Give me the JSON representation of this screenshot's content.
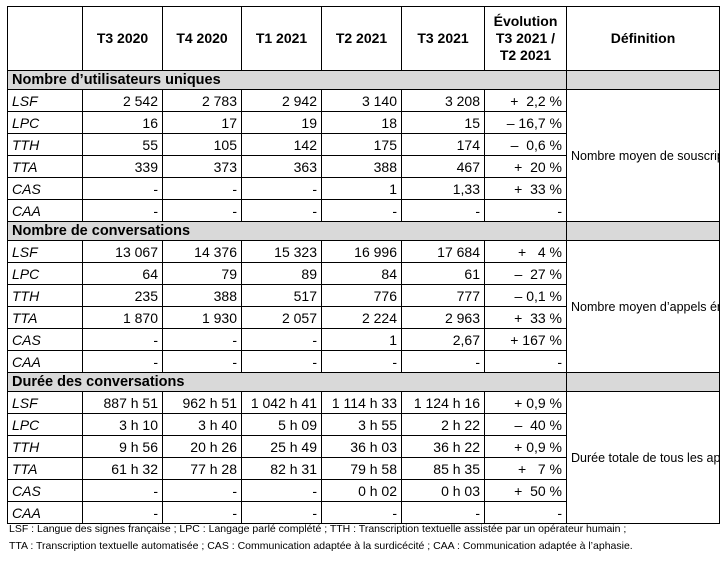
{
  "header": {
    "columns": [
      "T3 2020",
      "T4 2020",
      "T1 2021",
      "T2 2021",
      "T3 2021"
    ],
    "evolution_label": [
      "Évolution",
      "T3 2021 /",
      "T2 2021"
    ],
    "definition_label": "Définition"
  },
  "sections": [
    {
      "title": "Nombre d’utilisateurs uniques",
      "definition": "Nombre moyen de souscripteurs ayant utilisé le service au cours d’un mois, c’est-à-dire ceux ayant émis ou reçu un appel.",
      "rows": [
        {
          "label": "LSF",
          "values": [
            "2 542",
            "2 783",
            "2 942",
            "3 140",
            "3 208"
          ],
          "evolution": "+  2,2 %"
        },
        {
          "label": "LPC",
          "values": [
            "16",
            "17",
            "19",
            "18",
            "15"
          ],
          "evolution": "– 16,7 %"
        },
        {
          "label": "TTH",
          "values": [
            "55",
            "105",
            "142",
            "175",
            "174"
          ],
          "evolution": "–  0,6 %"
        },
        {
          "label": "TTA",
          "values": [
            "339",
            "373",
            "363",
            "388",
            "467"
          ],
          "evolution": "+  20 %"
        },
        {
          "label": "CAS",
          "values": [
            "-",
            "-",
            "-",
            "1",
            "1,33"
          ],
          "evolution": "+  33 %"
        },
        {
          "label": "CAA",
          "values": [
            "-",
            "-",
            "-",
            "-",
            "-"
          ],
          "evolution": "-"
        }
      ]
    },
    {
      "title": "Nombre de conversations",
      "definition": "Nombre moyen d’appels émis ou reçus par l’ensemble des utilisateurs au cours d’un mois.",
      "rows": [
        {
          "label": "LSF",
          "values": [
            "13 067",
            "14 376",
            "15 323",
            "16 996",
            "17 684"
          ],
          "evolution": "+   4 %"
        },
        {
          "label": "LPC",
          "values": [
            "64",
            "79",
            "89",
            "84",
            "61"
          ],
          "evolution": "–  27 %"
        },
        {
          "label": "TTH",
          "values": [
            "235",
            "388",
            "517",
            "776",
            "777"
          ],
          "evolution": "– 0,1 %"
        },
        {
          "label": "TTA",
          "values": [
            "1 870",
            "1 930",
            "2 057",
            "2 224",
            "2 963"
          ],
          "evolution": "+  33 %"
        },
        {
          "label": "CAS",
          "values": [
            "-",
            "-",
            "-",
            "1",
            "2,67"
          ],
          "evolution": "+ 167 %"
        },
        {
          "label": "CAA",
          "values": [
            "-",
            "-",
            "-",
            "-",
            "-"
          ],
          "evolution": "-"
        }
      ]
    },
    {
      "title": "Durée des conversations",
      "definition": "Durée totale de tous les appels émis ou reçus au cours d’un mois.",
      "rows": [
        {
          "label": "LSF",
          "values": [
            "887 h 51",
            "962 h 51",
            "1 042 h 41",
            "1 114 h 33",
            "1 124 h 16"
          ],
          "evolution": "+ 0,9 %"
        },
        {
          "label": "LPC",
          "values": [
            "3 h 10",
            "3 h 40",
            "5 h 09",
            "3 h 55",
            "2 h 22"
          ],
          "evolution": "–  40 %"
        },
        {
          "label": "TTH",
          "values": [
            "9 h 56",
            "20 h 26",
            "25 h 49",
            "36 h 03",
            "36 h 22"
          ],
          "evolution": "+ 0,9 %"
        },
        {
          "label": "TTA",
          "values": [
            "61 h 32",
            "77 h 28",
            "82 h 31",
            "79 h 58",
            "85 h 35"
          ],
          "evolution": "+   7 %"
        },
        {
          "label": "CAS",
          "values": [
            "-",
            "-",
            "-",
            "0 h 02",
            "0 h 03"
          ],
          "evolution": "+  50 %"
        },
        {
          "label": "CAA",
          "values": [
            "-",
            "-",
            "-",
            "-",
            "-"
          ],
          "evolution": "-"
        }
      ]
    }
  ],
  "footnote": [
    "LSF : Langue des signes française ; LPC : Langage parlé complété ; TTH : Transcription textuelle assistée par un opérateur humain ;",
    "TTA : Transcription textuelle automatisée ; CAS : Communication adaptée à la surdicécité ; CAA : Communication adaptée à l’aphasie."
  ]
}
